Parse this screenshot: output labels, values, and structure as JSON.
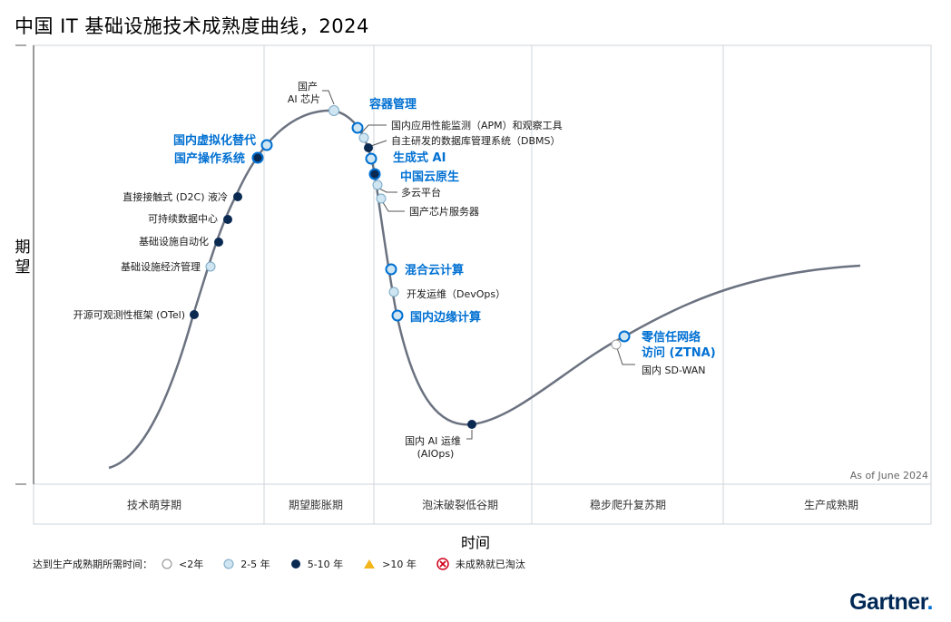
{
  "title": "中国 IT 基础设施技术成熟度曲线，2024",
  "y_axis_label": "期望",
  "x_axis_label": "时间",
  "as_of": "As of June 2024",
  "colors": {
    "highlight": "#0070d2",
    "dark": "#0b2a52",
    "light": "#cfe6f2",
    "curve": "#6b7280"
  },
  "phases": [
    "技术萌芽期",
    "期望膨胀期",
    "泡沫破裂低谷期",
    "稳步爬升复苏期",
    "生产成熟期"
  ],
  "chart_data": {
    "type": "hype-cycle",
    "x_phases": [
      "技术萌芽期",
      "期望膨胀期",
      "泡沫破裂低谷期",
      "稳步爬升复苏期",
      "生产成熟期"
    ],
    "points": [
      {
        "label": "开源可观测性框架 (OTel)",
        "category": "5-10 年",
        "highlight": false
      },
      {
        "label": "基础设施经济管理",
        "category": "2-5 年",
        "highlight": false
      },
      {
        "label": "基础设施自动化",
        "category": "5-10 年",
        "highlight": false
      },
      {
        "label": "可持续数据中心",
        "category": "5-10 年",
        "highlight": false
      },
      {
        "label": "直接接触式 (D2C) 液冷",
        "category": "5-10 年",
        "highlight": false
      },
      {
        "label": "国产操作系统",
        "category": "5-10 年",
        "highlight": true
      },
      {
        "label": "国内虚拟化替代",
        "category": "2-5 年",
        "highlight": true
      },
      {
        "label": "国产 AI 芯片",
        "category": "2-5 年",
        "highlight": false
      },
      {
        "label": "容器管理",
        "category": "2-5 年",
        "highlight": true
      },
      {
        "label": "国内应用性能监测（APM）和观察工具",
        "category": "2-5 年",
        "highlight": false
      },
      {
        "label": "自主研发的数据库管理系统（DBMS）",
        "category": "5-10 年",
        "highlight": false
      },
      {
        "label": "生成式 AI",
        "category": "2-5 年",
        "highlight": true
      },
      {
        "label": "中国云原生",
        "category": "5-10 年",
        "highlight": true
      },
      {
        "label": "多云平台",
        "category": "2-5 年",
        "highlight": false
      },
      {
        "label": "国产芯片服务器",
        "category": "2-5 年",
        "highlight": false
      },
      {
        "label": "混合云计算",
        "category": "2-5 年",
        "highlight": true
      },
      {
        "label": "开发运维（DevOps）",
        "category": "2-5 年",
        "highlight": false
      },
      {
        "label": "国内边缘计算",
        "category": "2-5 年",
        "highlight": true
      },
      {
        "label": "国内 AI 运维 (AIOps)",
        "category": "5-10 年",
        "highlight": false
      },
      {
        "label": "零信任网络访问 (ZTNA)",
        "category": "2-5 年",
        "highlight": true
      },
      {
        "label": "国内 SD-WAN",
        "category": "<2年",
        "highlight": false
      }
    ]
  },
  "labels": {
    "otel": "开源可观测性框架 (OTel)",
    "econ": "基础设施经济管理",
    "auto": "基础设施自动化",
    "sdc": "可持续数据中心",
    "d2c": "直接接触式 (D2C) 液冷",
    "os": "国产操作系统",
    "virt": "国内虚拟化替代",
    "aichip_1": "国产",
    "aichip_2": "AI 芯片",
    "container": "容器管理",
    "apm": "国内应用性能监测（APM）和观察工具",
    "dbms": "自主研发的数据库管理系统（DBMS）",
    "genai": "生成式 AI",
    "cloudnative": "中国云原生",
    "multicloud": "多云平台",
    "chipserver": "国产芯片服务器",
    "hybrid": "混合云计算",
    "devops": "开发运维（DevOps）",
    "edge": "国内边缘计算",
    "aiops_1": "国内 AI 运维",
    "aiops_2": "(AIOps)",
    "ztna_1": "零信任网络",
    "ztna_2": "访问 (ZTNA)",
    "sdwan": "国内 SD-WAN"
  },
  "legend": {
    "lead": "达到生产成熟期所需时间：",
    "items": [
      "<2年",
      "2-5 年",
      "5-10 年",
      ">10 年",
      "未成熟就已淘汰"
    ]
  },
  "logo": {
    "text": "Gartner",
    "dot": "."
  }
}
